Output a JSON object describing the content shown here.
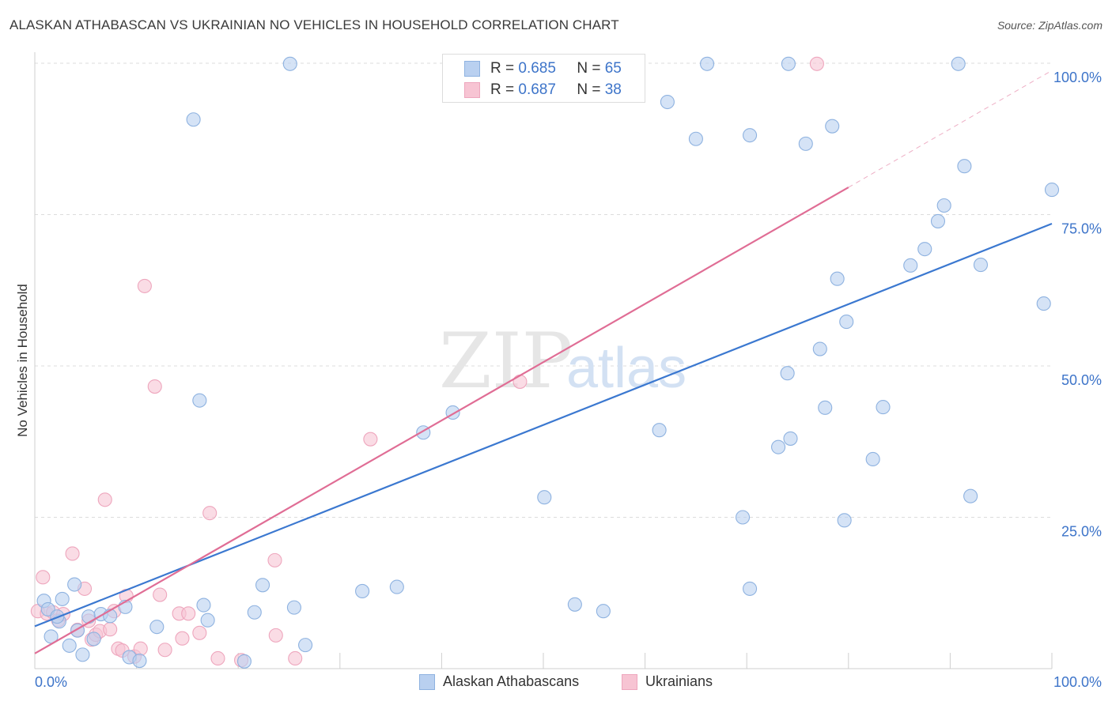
{
  "title": "ALASKAN ATHABASCAN VS UKRAINIAN NO VEHICLES IN HOUSEHOLD CORRELATION CHART",
  "source": "Source: ZipAtlas.com",
  "watermark": {
    "zip": "ZIP",
    "atlas": "atlas"
  },
  "legend_top": {
    "rows": [
      {
        "r_label": "R =",
        "r_value": "0.685",
        "n_label": "N =",
        "n_value": "65"
      },
      {
        "r_label": "R =",
        "r_value": "0.687",
        "n_label": "N =",
        "n_value": "38"
      }
    ]
  },
  "legend_bottom": {
    "series1": "Alaskan Athabascans",
    "series2": "Ukrainians"
  },
  "colors": {
    "blue_fill": "#b9d0f0",
    "blue_stroke": "#8eb2e0",
    "blue_line": "#3b78d0",
    "pink_fill": "#f7c4d3",
    "pink_stroke": "#eea6bd",
    "pink_line": "#e06d95",
    "tick_text": "#3d74c9",
    "grid": "#dcdcdc"
  },
  "chart_data": {
    "type": "scatter",
    "title": "ALASKAN ATHABASCAN VS UKRAINIAN NO VEHICLES IN HOUSEHOLD CORRELATION CHART",
    "xlabel": "",
    "ylabel": "No Vehicles in Household",
    "xlim": [
      0,
      100
    ],
    "ylim": [
      0,
      100
    ],
    "x_tick_labels": [
      "0.0%",
      "100.0%"
    ],
    "y_tick_labels": [
      "25.0%",
      "50.0%",
      "75.0%",
      "100.0%"
    ],
    "y_ticks": [
      25,
      50,
      75,
      100
    ],
    "series": [
      {
        "name": "Alaskan Athabascans",
        "color": "blue",
        "trend": {
          "x0": 0,
          "y0": 7.0,
          "x1": 100,
          "y1": 73.5,
          "dashed_to": null
        },
        "points": [
          [
            0.9,
            11.2
          ],
          [
            1.3,
            9.8
          ],
          [
            1.6,
            5.3
          ],
          [
            2.4,
            7.8
          ],
          [
            2.7,
            11.5
          ],
          [
            3.4,
            3.8
          ],
          [
            3.9,
            13.9
          ],
          [
            4.2,
            6.3
          ],
          [
            4.7,
            2.3
          ],
          [
            5.3,
            8.6
          ],
          [
            5.8,
            4.9
          ],
          [
            6.5,
            9.0
          ],
          [
            7.4,
            8.7
          ],
          [
            8.9,
            10.2
          ],
          [
            9.3,
            1.9
          ],
          [
            10.3,
            1.3
          ],
          [
            12.0,
            6.9
          ],
          [
            15.6,
            90.7
          ],
          [
            16.6,
            10.5
          ],
          [
            17.0,
            8.0
          ],
          [
            16.2,
            44.3
          ],
          [
            20.6,
            1.2
          ],
          [
            21.6,
            9.3
          ],
          [
            22.4,
            13.8
          ],
          [
            25.1,
            99.9
          ],
          [
            25.5,
            10.1
          ],
          [
            26.6,
            3.9
          ],
          [
            32.2,
            12.8
          ],
          [
            35.6,
            13.5
          ],
          [
            38.2,
            39.0
          ],
          [
            41.1,
            42.3
          ],
          [
            50.1,
            28.3
          ],
          [
            53.1,
            10.6
          ],
          [
            55.9,
            9.5
          ],
          [
            61.4,
            39.4
          ],
          [
            62.2,
            93.6
          ],
          [
            65.0,
            87.5
          ],
          [
            66.1,
            99.9
          ],
          [
            69.6,
            25.0
          ],
          [
            70.3,
            88.1
          ],
          [
            70.3,
            13.2
          ],
          [
            73.1,
            36.6
          ],
          [
            74.1,
            99.9
          ],
          [
            74.0,
            48.8
          ],
          [
            74.3,
            38.0
          ],
          [
            75.8,
            86.7
          ],
          [
            77.2,
            52.8
          ],
          [
            77.7,
            43.1
          ],
          [
            78.4,
            89.6
          ],
          [
            78.9,
            64.4
          ],
          [
            79.6,
            24.5
          ],
          [
            79.8,
            57.3
          ],
          [
            82.4,
            34.6
          ],
          [
            83.4,
            43.2
          ],
          [
            86.1,
            66.6
          ],
          [
            87.5,
            69.3
          ],
          [
            88.8,
            73.9
          ],
          [
            89.4,
            76.5
          ],
          [
            90.8,
            99.9
          ],
          [
            91.4,
            83.0
          ],
          [
            92.0,
            28.5
          ],
          [
            93.0,
            66.7
          ],
          [
            99.2,
            60.3
          ],
          [
            100.0,
            79.1
          ],
          [
            2.2,
            8.6
          ]
        ]
      },
      {
        "name": "Ukrainians",
        "color": "pink",
        "trend": {
          "x0": 0,
          "y0": 2.5,
          "x1": 80,
          "y1": 79.5,
          "dashed_to": [
            100,
            98.8
          ]
        },
        "points": [
          [
            0.3,
            9.5
          ],
          [
            0.8,
            15.1
          ],
          [
            1.2,
            9.1
          ],
          [
            1.8,
            9.3
          ],
          [
            2.3,
            8.0
          ],
          [
            2.8,
            9.0
          ],
          [
            3.7,
            19.0
          ],
          [
            4.2,
            6.4
          ],
          [
            4.9,
            13.2
          ],
          [
            5.3,
            7.9
          ],
          [
            5.6,
            4.8
          ],
          [
            6.0,
            5.6
          ],
          [
            6.4,
            6.2
          ],
          [
            6.9,
            27.9
          ],
          [
            7.4,
            6.5
          ],
          [
            7.8,
            9.5
          ],
          [
            8.2,
            3.3
          ],
          [
            8.6,
            3.0
          ],
          [
            9.0,
            12.0
          ],
          [
            9.8,
            2.0
          ],
          [
            10.4,
            3.3
          ],
          [
            10.8,
            63.2
          ],
          [
            11.8,
            46.6
          ],
          [
            12.3,
            12.2
          ],
          [
            12.8,
            3.1
          ],
          [
            14.2,
            9.1
          ],
          [
            14.5,
            5.0
          ],
          [
            15.1,
            9.1
          ],
          [
            16.2,
            5.9
          ],
          [
            17.2,
            25.7
          ],
          [
            18.0,
            1.7
          ],
          [
            20.3,
            1.4
          ],
          [
            23.6,
            17.9
          ],
          [
            23.7,
            5.5
          ],
          [
            25.6,
            1.7
          ],
          [
            33.0,
            37.9
          ],
          [
            47.7,
            47.4
          ],
          [
            76.9,
            99.9
          ]
        ]
      }
    ]
  }
}
